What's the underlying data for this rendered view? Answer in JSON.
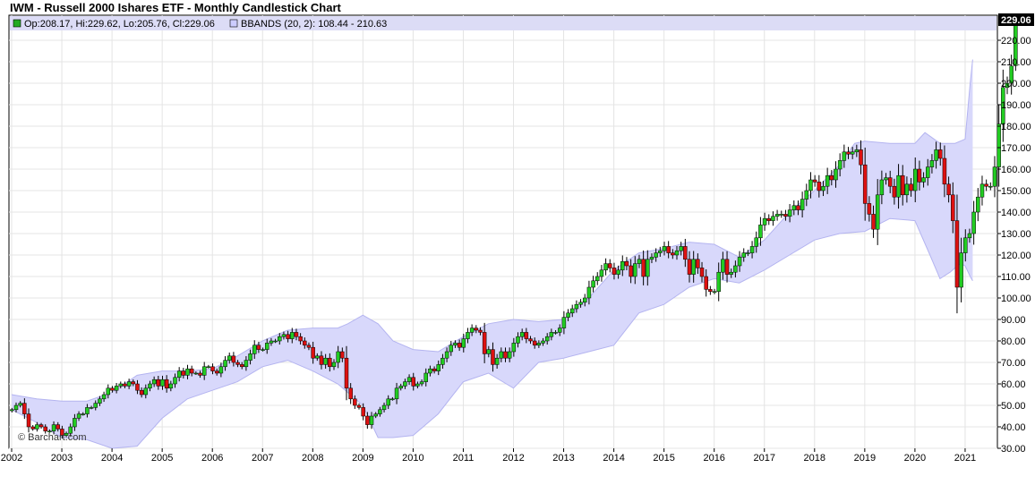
{
  "title": "IWM - Russell 2000 Ishares ETF - Monthly Candlestick Chart",
  "watermark": "© Barchart.com",
  "legend": {
    "ohlc_text": "Op:208.17, Hi:229.62, Lo:205.76, Cl:229.06",
    "bbands_text": "BBANDS (20, 2): 108.44 - 210.63",
    "ohlc_color": "#22aa22",
    "bbands_color": "#ccccff"
  },
  "last_price_label": "229.06",
  "colors": {
    "up": "#22cc22",
    "down": "#dd1111",
    "band_fill": "#d8d8fb",
    "band_line": "#b4b4f0",
    "grid": "#e4e4e4",
    "axis": "#000000",
    "last_price_bg": "#000000"
  },
  "chart_data": {
    "type": "candlestick",
    "title": "IWM - Russell 2000 Ishares ETF - Monthly Candlestick Chart",
    "x_tick_labels": [
      "2002",
      "2003",
      "2004",
      "2005",
      "2006",
      "2007",
      "2008",
      "2009",
      "2010",
      "2011",
      "2012",
      "2013",
      "2014",
      "2015",
      "2016",
      "2017",
      "2018",
      "2019",
      "2020",
      "2021"
    ],
    "y_tick_labels": [
      "30.00",
      "40.00",
      "50.00",
      "60.00",
      "70.00",
      "80.00",
      "90.00",
      "100.00",
      "110.00",
      "120.00",
      "130.00",
      "140.00",
      "150.00",
      "160.00",
      "170.00",
      "180.00",
      "190.00",
      "200.00",
      "210.00",
      "220.00"
    ],
    "ylim": [
      30,
      230
    ],
    "xlim": [
      2002.0,
      2021.5
    ],
    "grid": true,
    "legend_position": "top-left",
    "series": [
      {
        "name": "BBANDS (20, 2)",
        "type": "band",
        "upper": [
          [
            2002.0,
            55
          ],
          [
            2002.5,
            53
          ],
          [
            2003.0,
            52
          ],
          [
            2003.5,
            52
          ],
          [
            2004.0,
            56
          ],
          [
            2004.5,
            64
          ],
          [
            2005.0,
            66
          ],
          [
            2005.5,
            66
          ],
          [
            2006.0,
            67
          ],
          [
            2006.5,
            73
          ],
          [
            2007.0,
            80
          ],
          [
            2007.5,
            85
          ],
          [
            2008.0,
            86
          ],
          [
            2008.5,
            86
          ],
          [
            2008.7,
            88
          ],
          [
            2009.0,
            92
          ],
          [
            2009.3,
            88
          ],
          [
            2009.6,
            80
          ],
          [
            2010.0,
            76
          ],
          [
            2010.5,
            75
          ],
          [
            2011.0,
            82
          ],
          [
            2011.5,
            88
          ],
          [
            2012.0,
            90
          ],
          [
            2012.5,
            89
          ],
          [
            2013.0,
            90
          ],
          [
            2013.5,
            100
          ],
          [
            2014.0,
            113
          ],
          [
            2014.5,
            121
          ],
          [
            2015.0,
            123
          ],
          [
            2015.5,
            126
          ],
          [
            2016.0,
            125
          ],
          [
            2016.5,
            119
          ],
          [
            2017.0,
            127
          ],
          [
            2017.5,
            140
          ],
          [
            2018.0,
            150
          ],
          [
            2018.5,
            162
          ],
          [
            2018.8,
            172
          ],
          [
            2019.0,
            173
          ],
          [
            2019.5,
            172
          ],
          [
            2020.0,
            172
          ],
          [
            2020.2,
            177
          ],
          [
            2020.5,
            172
          ],
          [
            2020.8,
            172
          ],
          [
            2021.0,
            174
          ],
          [
            2021.1,
            200
          ],
          [
            2021.15,
            211
          ]
        ],
        "lower": [
          [
            2002.0,
            48
          ],
          [
            2002.5,
            42
          ],
          [
            2003.0,
            35
          ],
          [
            2003.5,
            34
          ],
          [
            2004.0,
            30
          ],
          [
            2004.5,
            31
          ],
          [
            2005.0,
            44
          ],
          [
            2005.5,
            53
          ],
          [
            2006.0,
            57
          ],
          [
            2006.5,
            61
          ],
          [
            2007.0,
            68
          ],
          [
            2007.5,
            71
          ],
          [
            2008.0,
            66
          ],
          [
            2008.5,
            60
          ],
          [
            2009.0,
            50
          ],
          [
            2009.3,
            35
          ],
          [
            2009.6,
            35
          ],
          [
            2010.0,
            36
          ],
          [
            2010.5,
            46
          ],
          [
            2011.0,
            61
          ],
          [
            2011.5,
            65
          ],
          [
            2012.0,
            58
          ],
          [
            2012.5,
            70
          ],
          [
            2013.0,
            72
          ],
          [
            2013.5,
            75
          ],
          [
            2014.0,
            78
          ],
          [
            2014.5,
            93
          ],
          [
            2015.0,
            97
          ],
          [
            2015.5,
            105
          ],
          [
            2016.0,
            109
          ],
          [
            2016.5,
            107
          ],
          [
            2017.0,
            113
          ],
          [
            2017.5,
            120
          ],
          [
            2018.0,
            127
          ],
          [
            2018.5,
            130
          ],
          [
            2019.0,
            131
          ],
          [
            2019.5,
            137
          ],
          [
            2020.0,
            136
          ],
          [
            2020.3,
            120
          ],
          [
            2020.5,
            109
          ],
          [
            2020.7,
            112
          ],
          [
            2020.9,
            116
          ],
          [
            2021.0,
            115
          ],
          [
            2021.1,
            110
          ],
          [
            2021.15,
            108
          ]
        ]
      },
      {
        "name": "IWM",
        "type": "ohlc",
        "closes": [
          48,
          50,
          51,
          46,
          40,
          39,
          41,
          40,
          38,
          38,
          41,
          39,
          36,
          37,
          40,
          44,
          46,
          46,
          49,
          49,
          51,
          53,
          55,
          58,
          57,
          59,
          60,
          59,
          61,
          60,
          57,
          55,
          58,
          60,
          62,
          59,
          62,
          58,
          60,
          63,
          66,
          64,
          67,
          65,
          65,
          64,
          68,
          68,
          66,
          65,
          68,
          71,
          73,
          70,
          69,
          68,
          71,
          74,
          78,
          76,
          76,
          79,
          80,
          80,
          82,
          83,
          81,
          84,
          82,
          80,
          78,
          77,
          72,
          73,
          69,
          72,
          68,
          70,
          75,
          72,
          58,
          53,
          50,
          49,
          45,
          41,
          45,
          46,
          48,
          50,
          53,
          53,
          58,
          59,
          61,
          63,
          59,
          60,
          61,
          65,
          67,
          66,
          69,
          72,
          75,
          78,
          79,
          77,
          81,
          84,
          86,
          85,
          84,
          74,
          76,
          69,
          72,
          75,
          72,
          75,
          79,
          82,
          84,
          81,
          80,
          78,
          79,
          80,
          82,
          84,
          84,
          86,
          91,
          93,
          95,
          97,
          98,
          100,
          105,
          108,
          110,
          113,
          116,
          114,
          111,
          113,
          117,
          115,
          110,
          116,
          118,
          110,
          118,
          119,
          121,
          122,
          124,
          121,
          120,
          122,
          124,
          118,
          111,
          118,
          114,
          110,
          104,
          103,
          103,
          112,
          118,
          111,
          112,
          115,
          119,
          121,
          121,
          124,
          128,
          134,
          137,
          136,
          138,
          139,
          139,
          138,
          141,
          143,
          141,
          146,
          150,
          155,
          154,
          150,
          152,
          157,
          155,
          160,
          164,
          168,
          167,
          168,
          169,
          162,
          144,
          139,
          132,
          148,
          155,
          156,
          152,
          147,
          157,
          148,
          153,
          150,
          160,
          154,
          156,
          161,
          164,
          169,
          165,
          153,
          148,
          136,
          105,
          121,
          128,
          130,
          140,
          147,
          153,
          152,
          152,
          161,
          181,
          198,
          200,
          208,
          229
        ]
      }
    ]
  }
}
